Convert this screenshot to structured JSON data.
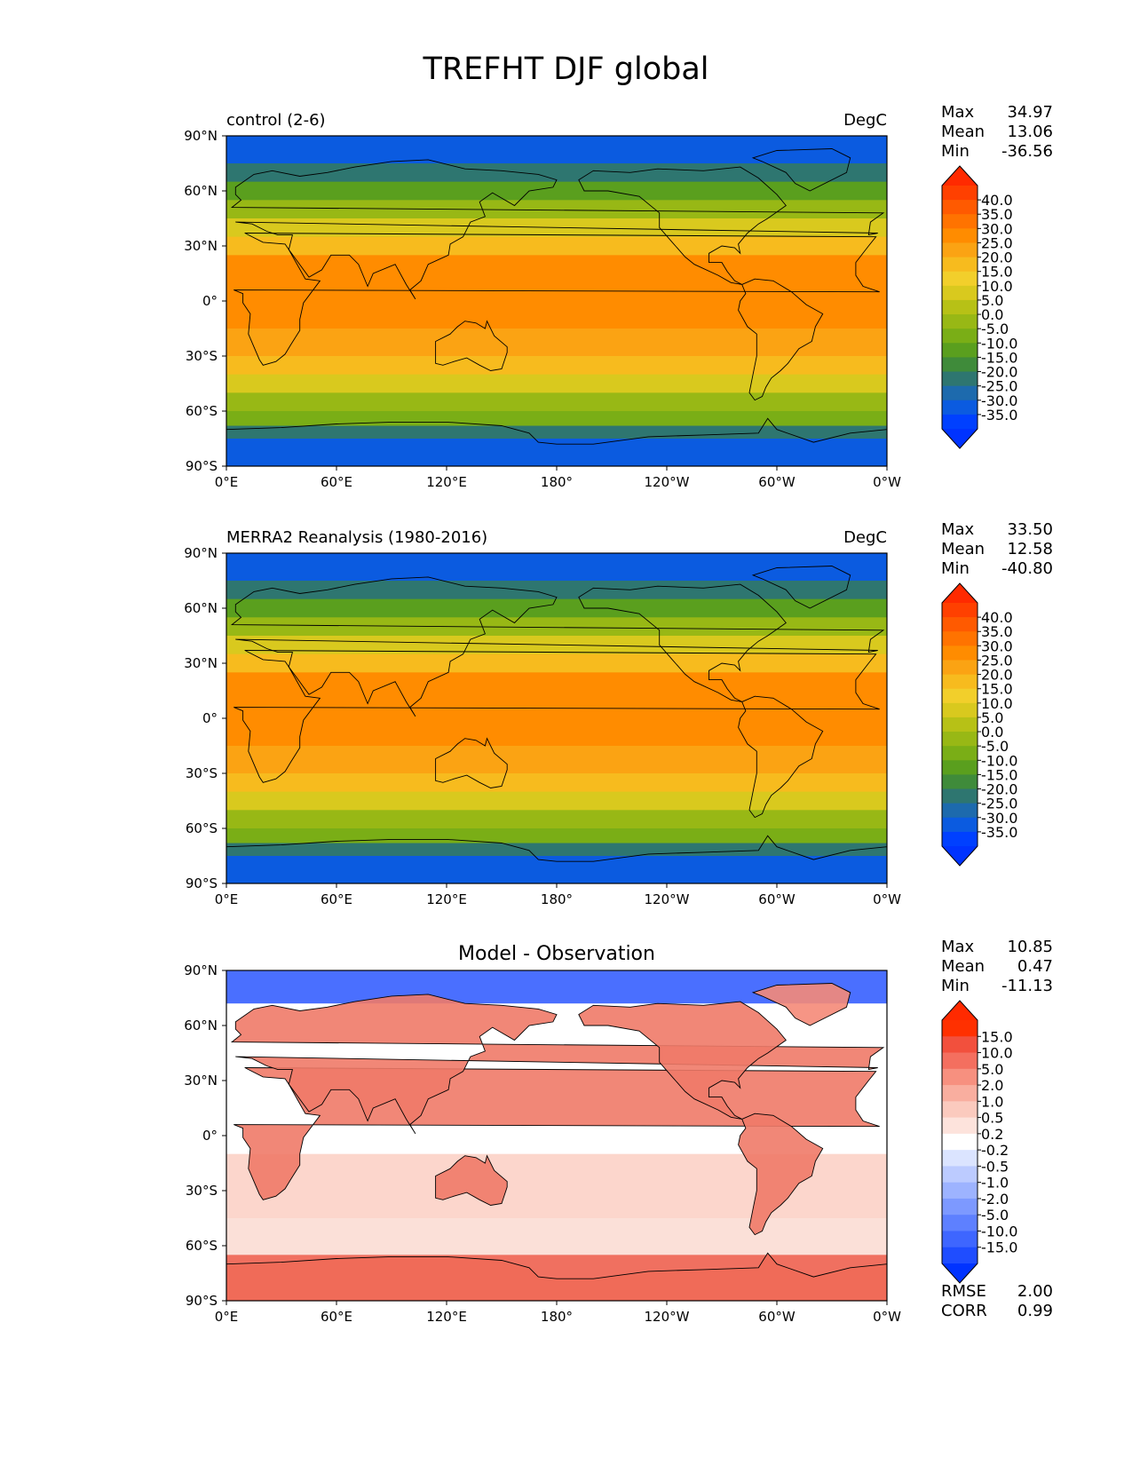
{
  "title": "TREFHT DJF global",
  "axes": {
    "lat_ticks": [
      "90°N",
      "60°N",
      "30°N",
      "0°",
      "30°S",
      "60°S",
      "90°S"
    ],
    "lon_ticks": [
      "0°E",
      "60°E",
      "120°E",
      "180°",
      "120°W",
      "60°W",
      "0°W"
    ]
  },
  "panels": [
    {
      "id": "control",
      "left_title": "control (2-6)",
      "center_title": "",
      "units": "DegC",
      "stats": [
        {
          "label": "Max",
          "value": "34.97"
        },
        {
          "label": "Mean",
          "value": "13.06"
        },
        {
          "label": "Min",
          "value": "-36.56"
        }
      ],
      "colorbar": {
        "labels": [
          "40.0",
          "35.0",
          "30.0",
          "25.0",
          "20.0",
          "15.0",
          "10.0",
          "5.0",
          "0.0",
          "-5.0",
          "-10.0",
          "-15.0",
          "-20.0",
          "-25.0",
          "-30.0",
          "-35.0"
        ],
        "colors": [
          "#ff4000",
          "#ff5a00",
          "#ff7300",
          "#ff8c00",
          "#fba313",
          "#f7bb1e",
          "#f2cf2b",
          "#d9c91e",
          "#b7c116",
          "#98b815",
          "#7aae16",
          "#5a9f1e",
          "#3f8b3a",
          "#2e7670",
          "#1d6aad",
          "#0b5be0",
          "#0040ff"
        ],
        "extend_colors": [
          "#ff2a00",
          "#0033ff"
        ]
      },
      "extra_stats": []
    },
    {
      "id": "obs",
      "left_title": "MERRA2 Reanalysis (1980-2016)",
      "center_title": "",
      "units": "DegC",
      "stats": [
        {
          "label": "Max",
          "value": "33.50"
        },
        {
          "label": "Mean",
          "value": "12.58"
        },
        {
          "label": "Min",
          "value": "-40.80"
        }
      ],
      "colorbar": {
        "labels": [
          "40.0",
          "35.0",
          "30.0",
          "25.0",
          "20.0",
          "15.0",
          "10.0",
          "5.0",
          "0.0",
          "-5.0",
          "-10.0",
          "-15.0",
          "-20.0",
          "-25.0",
          "-30.0",
          "-35.0"
        ],
        "colors": [
          "#ff4000",
          "#ff5a00",
          "#ff7300",
          "#ff8c00",
          "#fba313",
          "#f7bb1e",
          "#f2cf2b",
          "#d9c91e",
          "#b7c116",
          "#98b815",
          "#7aae16",
          "#5a9f1e",
          "#3f8b3a",
          "#2e7670",
          "#1d6aad",
          "#0b5be0",
          "#0040ff"
        ],
        "extend_colors": [
          "#ff2a00",
          "#0033ff"
        ]
      },
      "extra_stats": []
    },
    {
      "id": "diff",
      "left_title": "",
      "center_title": "Model - Observation",
      "units": "",
      "stats": [
        {
          "label": "Max",
          "value": "10.85"
        },
        {
          "label": "Mean",
          "value": "0.47"
        },
        {
          "label": "Min",
          "value": "-11.13"
        }
      ],
      "colorbar": {
        "labels": [
          "15.0",
          "10.0",
          "5.0",
          "2.0",
          "1.0",
          "0.5",
          "0.2",
          "-0.2",
          "-0.5",
          "-1.0",
          "-2.0",
          "-5.0",
          "-10.0",
          "-15.0"
        ],
        "colors": [
          "#ff3000",
          "#f2503d",
          "#f46f5f",
          "#f7907f",
          "#f9ae9f",
          "#fbcabe",
          "#fde3dc",
          "#ffffff",
          "#dbe4ff",
          "#bccbff",
          "#9db3ff",
          "#7d99ff",
          "#5e80ff",
          "#3e66ff",
          "#1f4dff"
        ],
        "extend_colors": [
          "#ff2a00",
          "#0033ff"
        ]
      },
      "extra_stats": [
        {
          "label": "RMSE",
          "value": "2.00"
        },
        {
          "label": "CORR",
          "value": "0.99"
        }
      ]
    }
  ],
  "colors": {
    "polar_blue": "#0b5be0",
    "teal": "#2e7670",
    "green": "#7aae16",
    "yellow": "#f2cf2b",
    "orange": "#ff8c00",
    "diff_red": "#f46f5f",
    "diff_blue": "#4a6fff"
  }
}
